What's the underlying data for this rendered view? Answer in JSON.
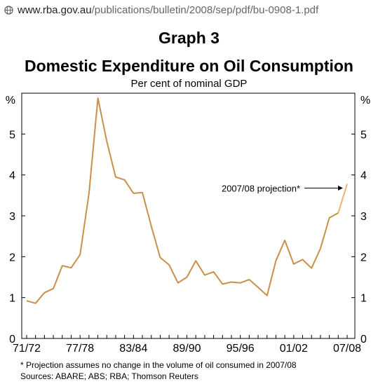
{
  "url_bar": {
    "host": "www.rba.gov.au",
    "path": "/publications/bulletin/2008/sep/pdf/bu-0908-1.pdf"
  },
  "graph_label": "Graph 3",
  "chart_data": {
    "type": "line",
    "title": "Domestic Expenditure on Oil Consumption",
    "subtitle": "Per cent of nominal GDP",
    "y_unit_left": "%",
    "y_unit_right": "%",
    "ylim": [
      0,
      6
    ],
    "yticks": [
      0,
      1,
      2,
      3,
      4,
      5
    ],
    "x_tick_labels": [
      "71/72",
      "77/78",
      "83/84",
      "89/90",
      "95/96",
      "01/02",
      "07/08"
    ],
    "x": [
      "71/72",
      "72/73",
      "73/74",
      "74/75",
      "75/76",
      "76/77",
      "77/78",
      "78/79",
      "79/80",
      "80/81",
      "81/82",
      "82/83",
      "83/84",
      "84/85",
      "85/86",
      "86/87",
      "87/88",
      "88/89",
      "89/90",
      "90/91",
      "91/92",
      "92/93",
      "93/94",
      "94/95",
      "95/96",
      "96/97",
      "97/98",
      "98/99",
      "99/00",
      "00/01",
      "01/02",
      "02/03",
      "03/04",
      "04/05",
      "05/06",
      "06/07",
      "07/08"
    ],
    "series": [
      {
        "values": [
          0.92,
          0.86,
          1.12,
          1.22,
          1.78,
          1.73,
          2.05,
          3.55,
          5.88,
          4.82,
          3.95,
          3.88,
          3.55,
          3.57,
          2.75,
          1.98,
          1.8,
          1.36,
          1.5,
          1.9,
          1.55,
          1.63,
          1.33,
          1.38,
          1.36,
          1.44,
          1.25,
          1.05,
          1.9,
          2.4,
          1.82,
          1.93,
          1.72,
          2.2,
          2.95,
          3.07,
          null
        ],
        "color": "#c89048"
      },
      {
        "values": [
          null,
          null,
          null,
          null,
          null,
          null,
          null,
          null,
          null,
          null,
          null,
          null,
          null,
          null,
          null,
          null,
          null,
          null,
          null,
          null,
          null,
          null,
          null,
          null,
          null,
          null,
          null,
          null,
          null,
          null,
          null,
          null,
          null,
          null,
          null,
          3.07,
          3.78
        ],
        "color": "#e4b67a"
      }
    ],
    "annotation": {
      "text": "2007/08 projection*",
      "points_to": "07/08"
    },
    "footnote": "*    Projection assumes no change in the volume of oil consumed in 2007/08",
    "sources": "Sources: ABARE; ABS; RBA; Thomson Reuters",
    "grid": false,
    "frame_color": "#000000"
  }
}
